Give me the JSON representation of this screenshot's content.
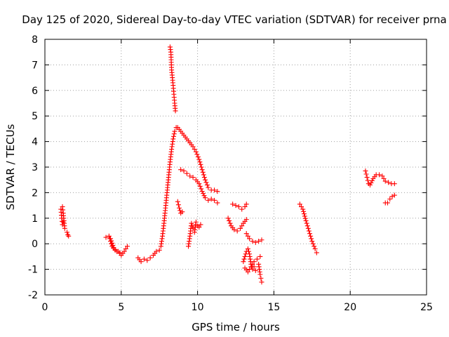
{
  "chart_data": {
    "type": "scatter",
    "title": "Day 125 of 2020, Sidereal Day-to-day VTEC variation (SDTVAR) for receiver prna",
    "xlabel": "GPS time / hours",
    "ylabel": "SDTVAR / TECUs",
    "xlim": [
      0,
      25
    ],
    "ylim": [
      -2,
      8
    ],
    "xticks": [
      0,
      5,
      10,
      15,
      20,
      25
    ],
    "yticks": [
      -2,
      -1,
      0,
      1,
      2,
      3,
      4,
      5,
      6,
      7,
      8
    ],
    "grid": true,
    "marker": "+",
    "color": "#ff0000",
    "segments": [
      {
        "x": [
          1.15,
          1.2,
          1.25,
          1.3
        ],
        "y": [
          1.45,
          1.2,
          0.9,
          0.6
        ]
      },
      {
        "x": [
          1.05,
          1.1,
          1.15,
          1.2
        ],
        "y": [
          1.35,
          1.0,
          0.75,
          0.85
        ]
      },
      {
        "x": [
          1.45,
          1.5,
          1.55
        ],
        "y": [
          0.45,
          0.35,
          0.3
        ]
      },
      {
        "x": [
          4.0,
          4.2,
          4.4,
          4.6,
          4.8,
          5.0,
          5.2,
          5.4
        ],
        "y": [
          0.25,
          0.3,
          -0.1,
          -0.25,
          -0.3,
          -0.45,
          -0.3,
          -0.1
        ]
      },
      {
        "x": [
          4.3,
          4.5,
          4.7,
          4.9
        ],
        "y": [
          0.2,
          -0.15,
          -0.3,
          -0.35
        ]
      },
      {
        "x": [
          6.1,
          6.3,
          6.5,
          6.7,
          6.9,
          7.1,
          7.3,
          7.5
        ],
        "y": [
          -0.55,
          -0.7,
          -0.6,
          -0.65,
          -0.55,
          -0.45,
          -0.3,
          -0.25
        ]
      },
      {
        "x": [
          7.6,
          7.7,
          7.8,
          7.9,
          8.0,
          8.1,
          8.2,
          8.3,
          8.4,
          8.5,
          8.6
        ],
        "y": [
          -0.1,
          0.3,
          0.8,
          1.4,
          2.0,
          2.6,
          3.2,
          3.7,
          4.1,
          4.4,
          4.55
        ]
      },
      {
        "x": [
          8.7,
          8.9,
          9.1,
          9.3,
          9.5,
          9.7,
          9.9,
          10.1,
          10.3,
          10.5,
          10.7,
          10.9,
          11.1,
          11.3
        ],
        "y": [
          4.55,
          4.4,
          4.25,
          4.1,
          3.95,
          3.8,
          3.6,
          3.3,
          2.9,
          2.5,
          2.2,
          2.1,
          2.1,
          2.05
        ]
      },
      {
        "x": [
          8.9,
          9.1,
          9.3,
          9.5,
          9.7,
          9.9,
          10.1,
          10.3,
          10.5,
          10.7,
          10.9,
          11.1,
          11.3
        ],
        "y": [
          2.9,
          2.85,
          2.75,
          2.65,
          2.6,
          2.5,
          2.35,
          2.05,
          1.8,
          1.7,
          1.75,
          1.7,
          1.6
        ]
      },
      {
        "x": [
          8.2,
          8.25,
          8.3,
          8.35,
          8.4,
          8.45,
          8.5,
          8.55
        ],
        "y": [
          7.7,
          7.5,
          6.8,
          6.5,
          6.2,
          5.85,
          5.5,
          5.2
        ]
      },
      {
        "x": [
          8.7,
          8.8,
          8.9,
          9.0
        ],
        "y": [
          1.65,
          1.4,
          1.2,
          1.25
        ]
      },
      {
        "x": [
          9.4,
          9.5,
          9.6,
          9.7,
          9.8,
          9.9,
          10.0,
          10.1,
          10.2
        ],
        "y": [
          -0.1,
          0.3,
          0.8,
          0.6,
          0.45,
          0.85,
          0.7,
          0.65,
          0.75
        ]
      },
      {
        "x": [
          12.0,
          12.2,
          12.4,
          12.6,
          12.8,
          13.0,
          13.2
        ],
        "y": [
          1.0,
          0.7,
          0.55,
          0.5,
          0.6,
          0.8,
          0.95
        ]
      },
      {
        "x": [
          12.3,
          12.5,
          12.7,
          12.9,
          13.1,
          13.2
        ],
        "y": [
          1.55,
          1.5,
          1.45,
          1.35,
          1.45,
          1.55
        ]
      },
      {
        "x": [
          13.2,
          13.4,
          13.6,
          13.8,
          14.0,
          14.2
        ],
        "y": [
          0.4,
          0.2,
          0.1,
          0.05,
          0.1,
          0.15
        ]
      },
      {
        "x": [
          13.0,
          13.1,
          13.2,
          13.3,
          13.4,
          13.5,
          13.6,
          13.7,
          13.8
        ],
        "y": [
          -0.7,
          -0.5,
          -0.3,
          -0.2,
          -0.4,
          -0.8,
          -1.0,
          -0.9,
          -1.05
        ]
      },
      {
        "x": [
          13.1,
          13.3,
          13.5,
          13.7,
          13.9,
          14.1
        ],
        "y": [
          -0.95,
          -1.1,
          -0.9,
          -0.7,
          -0.6,
          -0.5
        ]
      },
      {
        "x": [
          14.0,
          14.05,
          14.1,
          14.15,
          14.2
        ],
        "y": [
          -0.8,
          -1.0,
          -1.2,
          -1.35,
          -1.5
        ]
      },
      {
        "x": [
          16.7,
          16.9,
          17.1,
          17.3,
          17.5,
          17.7,
          17.8
        ],
        "y": [
          1.55,
          1.35,
          0.9,
          0.5,
          0.1,
          -0.2,
          -0.35
        ]
      },
      {
        "x": [
          21.0,
          21.1,
          21.2,
          21.3,
          21.5,
          21.7,
          21.9,
          22.1,
          22.3,
          22.5,
          22.7,
          22.9
        ],
        "y": [
          2.85,
          2.6,
          2.35,
          2.3,
          2.55,
          2.7,
          2.7,
          2.65,
          2.45,
          2.4,
          2.35,
          2.35
        ]
      },
      {
        "x": [
          22.3,
          22.45,
          22.6,
          22.75,
          22.9
        ],
        "y": [
          1.6,
          1.6,
          1.75,
          1.85,
          1.9
        ]
      }
    ]
  }
}
